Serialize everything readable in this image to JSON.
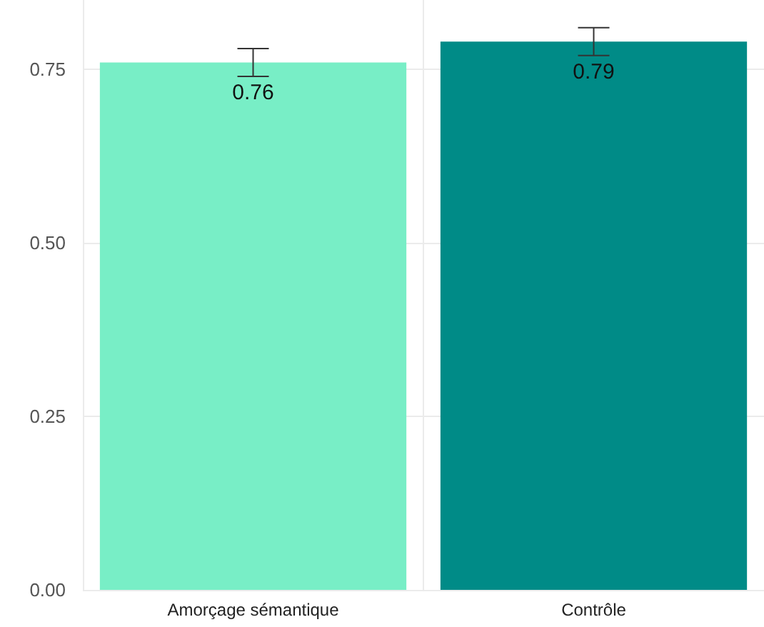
{
  "chart_data": {
    "type": "bar",
    "categories": [
      "Amorçage sémantique",
      "Contrôle"
    ],
    "values": [
      0.76,
      0.79
    ],
    "colors": [
      "#78eec6",
      "#008b87"
    ],
    "errors": [
      [
        0.74,
        0.78
      ],
      [
        0.77,
        0.81
      ]
    ],
    "data_labels": true,
    "ylim": [
      0,
      0.85
    ],
    "yticks": [
      {
        "value": 0,
        "label": "0.00"
      },
      {
        "value": 0.25,
        "label": "0.25"
      },
      {
        "value": 0.5,
        "label": "0.50"
      },
      {
        "value": 0.75,
        "label": "0.75"
      }
    ],
    "grid": true
  }
}
